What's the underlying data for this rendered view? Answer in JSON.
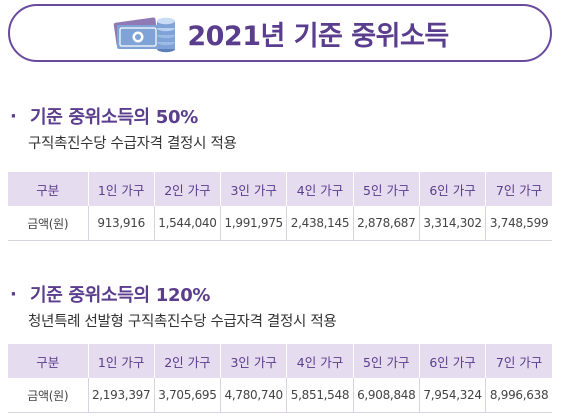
{
  "header": {
    "title": "2021년 기준 중위소득",
    "icon": "money-bills-coins-icon",
    "accent_color": "#5a3d8c",
    "header_bg_color": "#e5dcef"
  },
  "sections": [
    {
      "bullet": "·",
      "title": "기준 중위소득의 50%",
      "subtitle": "구직촉진수당 수급자격 결정시 적용",
      "columns": [
        "구분",
        "1인 가구",
        "2인 가구",
        "3인 가구",
        "4인 가구",
        "5인 가구",
        "6인 가구",
        "7인 가구"
      ],
      "row_label": "금액(원)",
      "values": [
        "913,916",
        "1,544,040",
        "1,991,975",
        "2,438,145",
        "2,878,687",
        "3,314,302",
        "3,748,599"
      ]
    },
    {
      "bullet": "·",
      "title": "기준 중위소득의 120%",
      "subtitle": "청년특례 선발형 구직촉진수당 수급자격 결정시 적용",
      "columns": [
        "구분",
        "1인 가구",
        "2인 가구",
        "3인 가구",
        "4인 가구",
        "5인 가구",
        "6인 가구",
        "7인 가구"
      ],
      "row_label": "금액(원)",
      "values": [
        "2,193,397",
        "3,705,695",
        "4,780,740",
        "5,851,548",
        "6,908,848",
        "7,954,324",
        "8,996,638"
      ]
    }
  ]
}
